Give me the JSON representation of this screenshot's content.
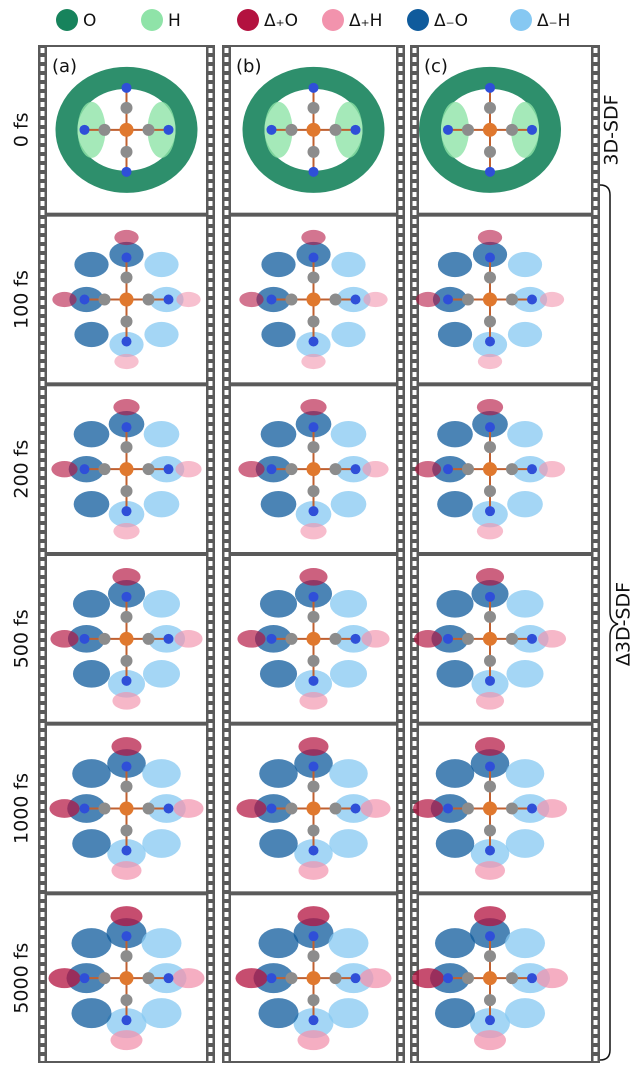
{
  "legend": [
    {
      "label": "O",
      "color": "#17835c"
    },
    {
      "label": "H",
      "color": "#8fe3a8"
    },
    {
      "label": "Δ₊O",
      "color": "#b3123f"
    },
    {
      "label": "Δ₊H",
      "color": "#f293ad"
    },
    {
      "label": "Δ₋O",
      "color": "#0f5b9c"
    },
    {
      "label": "Δ₋H",
      "color": "#86c8f2"
    }
  ],
  "panels": [
    "(a)",
    "(b)",
    "(c)"
  ],
  "rows": [
    "0 fs",
    "100 fs",
    "200 fs",
    "500 fs",
    "1000 fs",
    "5000 fs"
  ],
  "side_labels": {
    "top": "3D-SDF",
    "bracket": "Δ3D-SDF"
  }
}
